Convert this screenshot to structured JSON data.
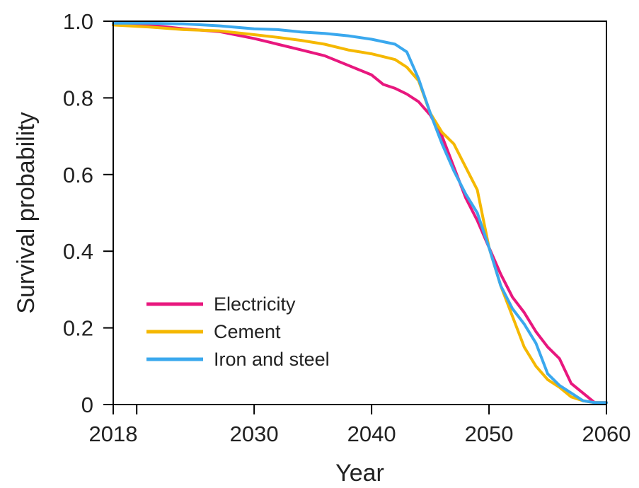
{
  "chart_data": {
    "type": "line",
    "xlabel": "Year",
    "ylabel": "Survival probability",
    "xlim": [
      2018,
      2060
    ],
    "ylim": [
      0,
      1.0
    ],
    "xticks": [
      2018,
      2030,
      2040,
      2050,
      2060
    ],
    "xtick_labels": [
      "2018",
      "2030",
      "2040",
      "2050",
      "2060"
    ],
    "yticks": [
      0,
      0.2,
      0.4,
      0.6,
      0.8,
      1.0
    ],
    "ytick_labels": [
      "0",
      "0.2",
      "0.4",
      "0.6",
      "0.8",
      "1.0"
    ],
    "grid": false,
    "legend_position": "bottom-left",
    "series": [
      {
        "name": "Electricity",
        "color": "#e8177e",
        "points": [
          [
            2018,
            0.99
          ],
          [
            2021,
            0.99
          ],
          [
            2024,
            0.98
          ],
          [
            2027,
            0.973
          ],
          [
            2030,
            0.955
          ],
          [
            2032,
            0.94
          ],
          [
            2034,
            0.925
          ],
          [
            2036,
            0.91
          ],
          [
            2038,
            0.885
          ],
          [
            2040,
            0.86
          ],
          [
            2041,
            0.835
          ],
          [
            2042,
            0.825
          ],
          [
            2043,
            0.81
          ],
          [
            2044,
            0.79
          ],
          [
            2045,
            0.755
          ],
          [
            2046,
            0.7
          ],
          [
            2047,
            0.62
          ],
          [
            2048,
            0.54
          ],
          [
            2049,
            0.48
          ],
          [
            2050,
            0.41
          ],
          [
            2051,
            0.34
          ],
          [
            2052,
            0.28
          ],
          [
            2053,
            0.24
          ],
          [
            2054,
            0.19
          ],
          [
            2055,
            0.15
          ],
          [
            2056,
            0.12
          ],
          [
            2057,
            0.055
          ],
          [
            2058,
            0.03
          ],
          [
            2059,
            0.005
          ],
          [
            2060,
            0.005
          ]
        ]
      },
      {
        "name": "Cement",
        "color": "#f5b800",
        "points": [
          [
            2018,
            0.99
          ],
          [
            2021,
            0.985
          ],
          [
            2024,
            0.978
          ],
          [
            2027,
            0.975
          ],
          [
            2030,
            0.965
          ],
          [
            2032,
            0.958
          ],
          [
            2034,
            0.95
          ],
          [
            2036,
            0.94
          ],
          [
            2038,
            0.925
          ],
          [
            2040,
            0.915
          ],
          [
            2042,
            0.9
          ],
          [
            2043,
            0.88
          ],
          [
            2044,
            0.845
          ],
          [
            2045,
            0.76
          ],
          [
            2046,
            0.71
          ],
          [
            2047,
            0.68
          ],
          [
            2048,
            0.62
          ],
          [
            2049,
            0.56
          ],
          [
            2050,
            0.41
          ],
          [
            2051,
            0.31
          ],
          [
            2052,
            0.23
          ],
          [
            2053,
            0.15
          ],
          [
            2054,
            0.1
          ],
          [
            2055,
            0.065
          ],
          [
            2056,
            0.045
          ],
          [
            2057,
            0.02
          ],
          [
            2058,
            0.01
          ],
          [
            2059,
            0.005
          ],
          [
            2060,
            0.005
          ]
        ]
      },
      {
        "name": "Iron and steel",
        "color": "#3aa8ee",
        "points": [
          [
            2018,
            0.995
          ],
          [
            2021,
            0.995
          ],
          [
            2024,
            0.993
          ],
          [
            2027,
            0.988
          ],
          [
            2030,
            0.98
          ],
          [
            2032,
            0.978
          ],
          [
            2034,
            0.972
          ],
          [
            2036,
            0.968
          ],
          [
            2038,
            0.962
          ],
          [
            2040,
            0.953
          ],
          [
            2042,
            0.94
          ],
          [
            2043,
            0.92
          ],
          [
            2044,
            0.85
          ],
          [
            2045,
            0.76
          ],
          [
            2046,
            0.68
          ],
          [
            2047,
            0.61
          ],
          [
            2048,
            0.55
          ],
          [
            2049,
            0.5
          ],
          [
            2050,
            0.41
          ],
          [
            2051,
            0.31
          ],
          [
            2052,
            0.25
          ],
          [
            2053,
            0.21
          ],
          [
            2054,
            0.16
          ],
          [
            2055,
            0.08
          ],
          [
            2056,
            0.05
          ],
          [
            2057,
            0.03
          ],
          [
            2058,
            0.01
          ],
          [
            2059,
            0.005
          ],
          [
            2060,
            0.005
          ]
        ]
      }
    ]
  }
}
